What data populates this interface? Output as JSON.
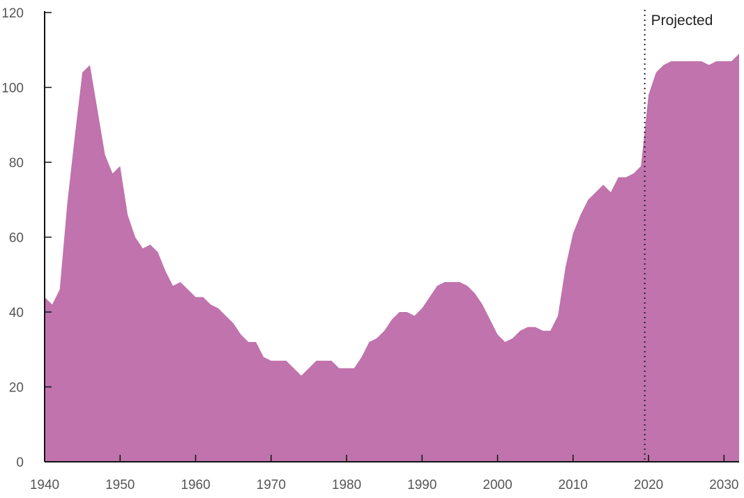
{
  "chart_data": {
    "type": "area",
    "title": "",
    "xlabel": "",
    "ylabel": "",
    "xlim": [
      1940,
      2032
    ],
    "ylim": [
      0,
      120
    ],
    "grid": false,
    "legend": "none",
    "x_ticks": [
      1940,
      1950,
      1960,
      1970,
      1980,
      1990,
      2000,
      2010,
      2020,
      2030
    ],
    "y_ticks": [
      0,
      20,
      40,
      60,
      80,
      100,
      120
    ],
    "x_tick_labels": [
      "1940",
      "1950",
      "1960",
      "1970",
      "1980",
      "1990",
      "2000",
      "2010",
      "2020",
      "2030"
    ],
    "y_tick_labels": [
      "0",
      "20",
      "40",
      "60",
      "80",
      "100",
      "120"
    ],
    "annotation": {
      "text": "Projected",
      "x": 2019.5
    },
    "series": [
      {
        "color": "#c073ac",
        "x": [
          1940,
          1941,
          1942,
          1943,
          1944,
          1945,
          1946,
          1947,
          1948,
          1949,
          1950,
          1951,
          1952,
          1953,
          1954,
          1955,
          1956,
          1957,
          1958,
          1959,
          1960,
          1961,
          1962,
          1963,
          1964,
          1965,
          1966,
          1967,
          1968,
          1969,
          1970,
          1971,
          1972,
          1973,
          1974,
          1975,
          1976,
          1977,
          1978,
          1979,
          1980,
          1981,
          1982,
          1983,
          1984,
          1985,
          1986,
          1987,
          1988,
          1989,
          1990,
          1991,
          1992,
          1993,
          1994,
          1995,
          1996,
          1997,
          1998,
          1999,
          2000,
          2001,
          2002,
          2003,
          2004,
          2005,
          2006,
          2007,
          2008,
          2009,
          2010,
          2011,
          2012,
          2013,
          2014,
          2015,
          2016,
          2017,
          2018,
          2019,
          2020,
          2021,
          2022,
          2023,
          2024,
          2025,
          2026,
          2027,
          2028,
          2029,
          2030,
          2031,
          2032
        ],
        "values": [
          44,
          42,
          46,
          69,
          87,
          104,
          106,
          94,
          82,
          77,
          79,
          66,
          60,
          57,
          58,
          56,
          51,
          47,
          48,
          46,
          44,
          44,
          42,
          41,
          39,
          37,
          34,
          32,
          32,
          28,
          27,
          27,
          27,
          25,
          23,
          25,
          27,
          27,
          27,
          25,
          25,
          25,
          28,
          32,
          33,
          35,
          38,
          40,
          40,
          39,
          41,
          44,
          47,
          48,
          48,
          48,
          47,
          45,
          42,
          38,
          34,
          32,
          33,
          35,
          36,
          36,
          35,
          35,
          39,
          52,
          61,
          66,
          70,
          72,
          74,
          72,
          76,
          76,
          77,
          79,
          98,
          104,
          106,
          107,
          107,
          107,
          107,
          107,
          106,
          107,
          107,
          107,
          109
        ]
      }
    ]
  }
}
